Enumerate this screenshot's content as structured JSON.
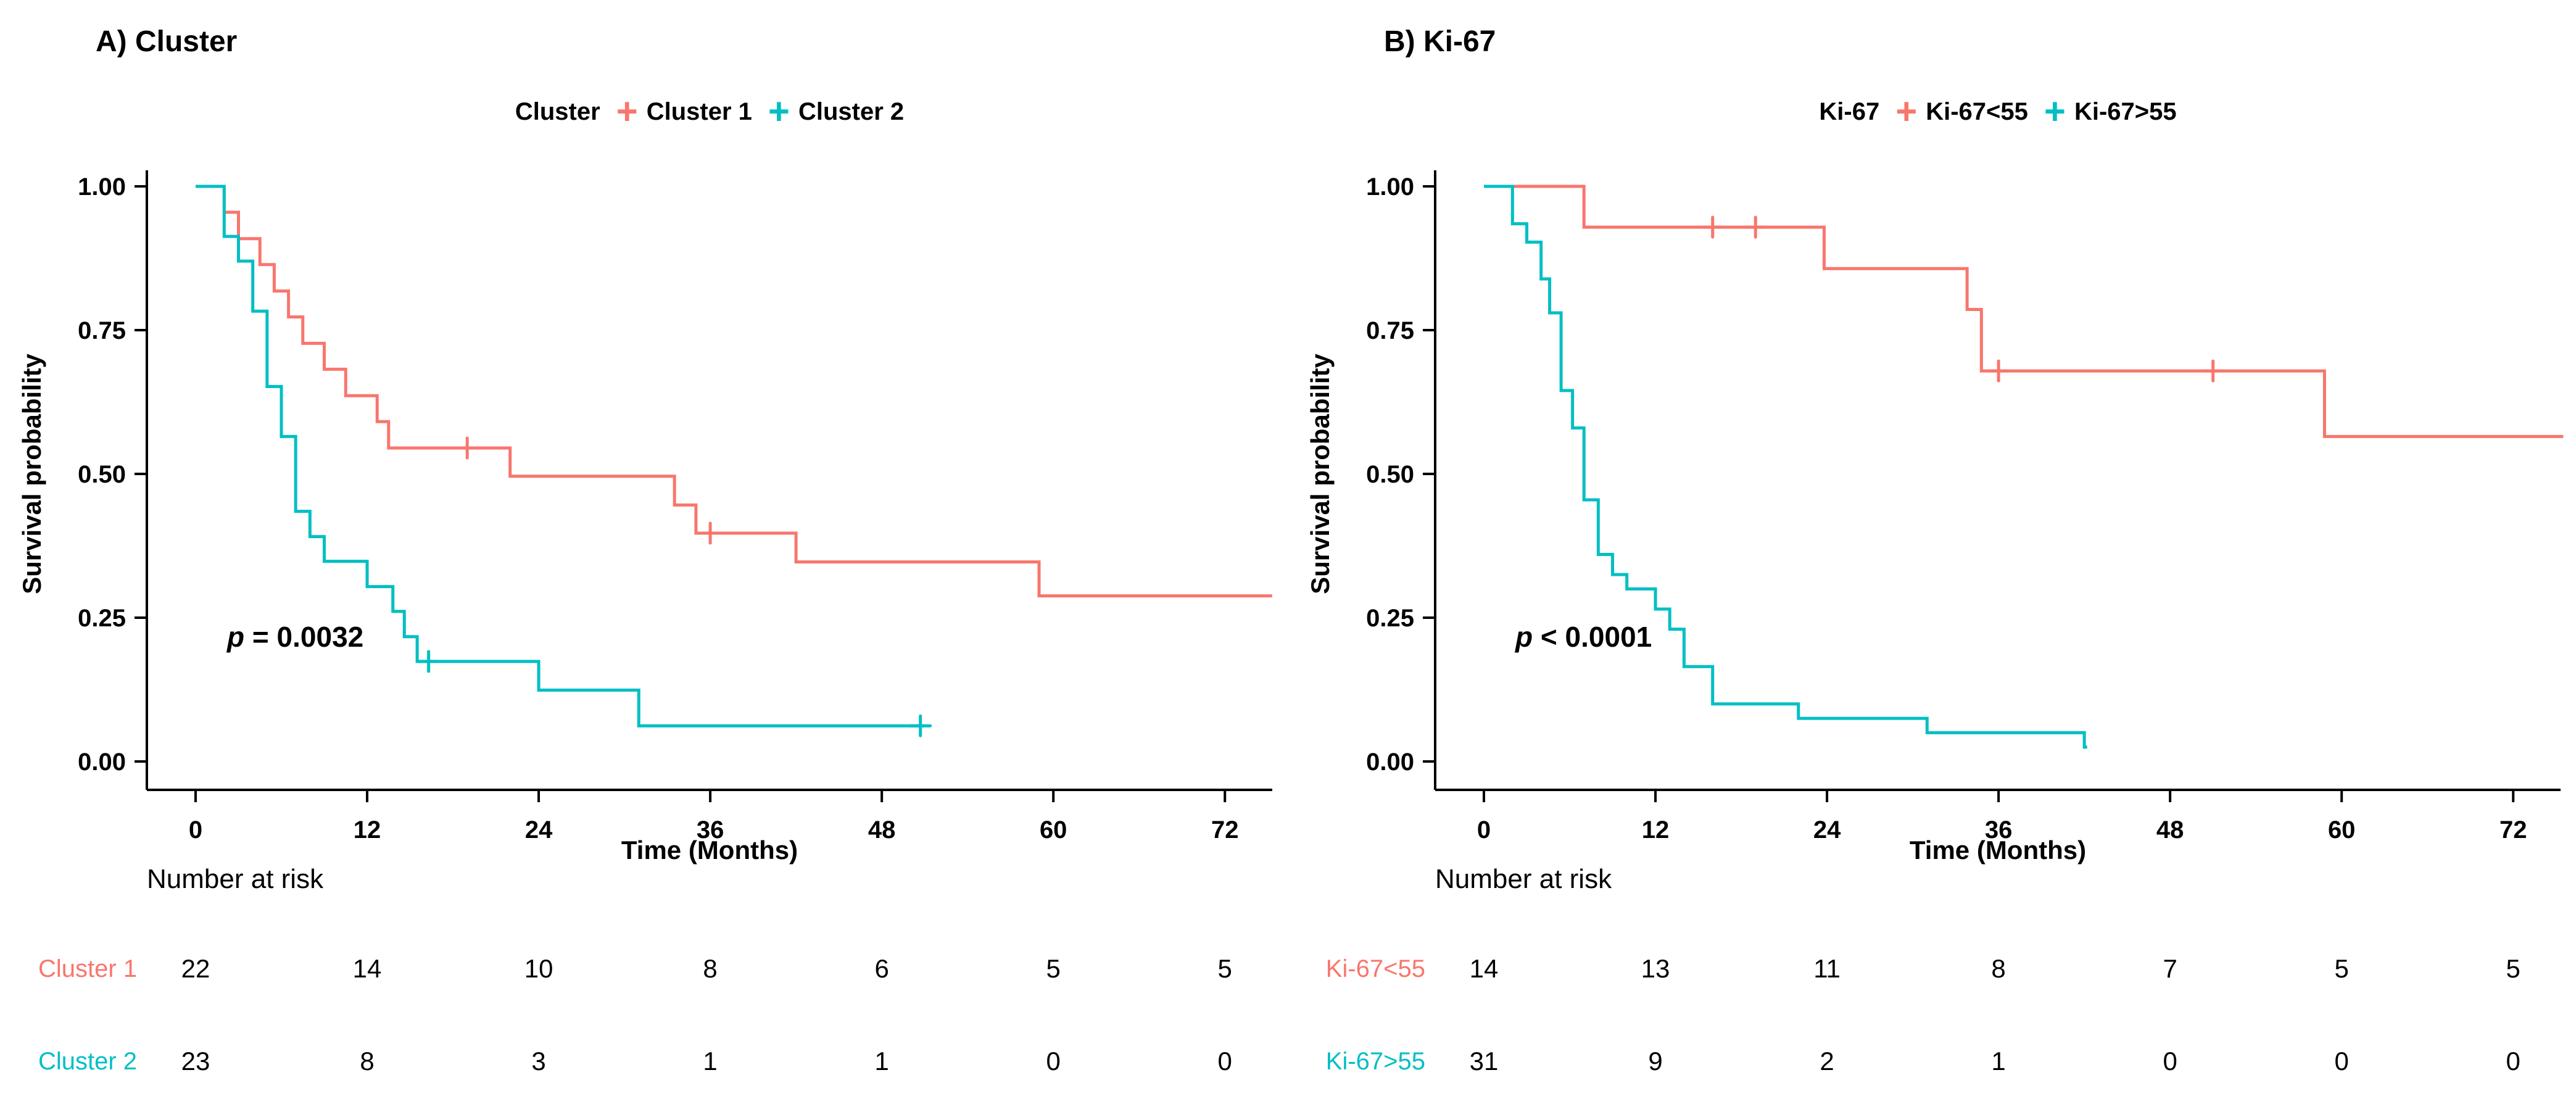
{
  "figure_colors": {
    "group1": "#F8766D",
    "group2": "#00BFC4",
    "axis": "#000000",
    "background": "#ffffff"
  },
  "panels": [
    {
      "title": "A) Cluster",
      "legend": {
        "title": "Cluster",
        "items": [
          {
            "label": "Cluster 1",
            "marker": "+",
            "color": "#F8766D"
          },
          {
            "label": "Cluster 2",
            "marker": "+",
            "color": "#00BFC4"
          }
        ]
      },
      "ylabel": "Survival probability",
      "xlabel": "Time (Months)",
      "p_prefix": "p",
      "p_text": " = 0.0032",
      "risk_table": {
        "heading": "Number at risk",
        "times": [
          0,
          12,
          24,
          36,
          48,
          60,
          72
        ],
        "rows": [
          {
            "label": "Cluster 1",
            "color": "#F8766D",
            "counts": [
              22,
              14,
              10,
              8,
              6,
              5,
              5
            ]
          },
          {
            "label": "Cluster 2",
            "color": "#00BFC4",
            "counts": [
              23,
              8,
              3,
              1,
              1,
              0,
              0
            ]
          }
        ]
      }
    },
    {
      "title": "B) Ki-67",
      "legend": {
        "title": "Ki-67",
        "items": [
          {
            "label": "Ki-67<55",
            "marker": "+",
            "color": "#F8766D"
          },
          {
            "label": "Ki-67>55",
            "marker": "+",
            "color": "#00BFC4"
          }
        ]
      },
      "ylabel": "Survival probability",
      "xlabel": "Time (Months)",
      "p_prefix": "p",
      "p_text": " < 0.0001",
      "risk_table": {
        "heading": "Number at risk",
        "times": [
          0,
          12,
          24,
          36,
          48,
          60,
          72
        ],
        "rows": [
          {
            "label": "Ki-67<55",
            "color": "#F8766D",
            "counts": [
              14,
              13,
              11,
              8,
              7,
              5,
              5
            ]
          },
          {
            "label": "Ki-67>55",
            "color": "#00BFC4",
            "counts": [
              31,
              9,
              2,
              1,
              0,
              0,
              0
            ]
          }
        ]
      }
    }
  ],
  "chart_data": [
    {
      "type": "line",
      "subtype": "kaplan_meier_step",
      "title": "A) Cluster",
      "xlabel": "Time (Months)",
      "ylabel": "Survival probability",
      "annotation": "p = 0.0032",
      "legend_position": "top",
      "grid": false,
      "xlim": [
        0,
        76
      ],
      "ylim": [
        0,
        1
      ],
      "x_ticks": [
        0,
        12,
        24,
        36,
        48,
        60,
        72
      ],
      "y_ticks": [
        {
          "value": 0.0,
          "label": "0.00"
        },
        {
          "value": 0.25,
          "label": "0.25"
        },
        {
          "value": 0.5,
          "label": "0.50"
        },
        {
          "value": 0.75,
          "label": "0.75"
        },
        {
          "value": 1.0,
          "label": "1.00"
        }
      ],
      "series": [
        {
          "name": "Cluster 1",
          "color": "#F8766D",
          "steps": [
            [
              0,
              1.0
            ],
            [
              2,
              0.955
            ],
            [
              3,
              0.909
            ],
            [
              4.5,
              0.864
            ],
            [
              5.5,
              0.818
            ],
            [
              6.5,
              0.773
            ],
            [
              7.5,
              0.727
            ],
            [
              9,
              0.682
            ],
            [
              10.5,
              0.636
            ],
            [
              12.7,
              0.591
            ],
            [
              13.5,
              0.545
            ],
            [
              22,
              0.496
            ],
            [
              33.5,
              0.446
            ],
            [
              35,
              0.397
            ],
            [
              42,
              0.347
            ],
            [
              59,
              0.288
            ]
          ],
          "t_end": 75.3,
          "censors": [
            [
              19,
              0.545
            ],
            [
              36,
              0.397
            ]
          ]
        },
        {
          "name": "Cluster 2",
          "color": "#00BFC4",
          "steps": [
            [
              0,
              1.0
            ],
            [
              2,
              0.913
            ],
            [
              3,
              0.87
            ],
            [
              4,
              0.783
            ],
            [
              5,
              0.652
            ],
            [
              6,
              0.565
            ],
            [
              7,
              0.435
            ],
            [
              8,
              0.391
            ],
            [
              9,
              0.348
            ],
            [
              12,
              0.304
            ],
            [
              13.8,
              0.261
            ],
            [
              14.6,
              0.217
            ],
            [
              15.5,
              0.174
            ],
            [
              24,
              0.124
            ],
            [
              31,
              0.062
            ]
          ],
          "t_end": 51,
          "censors": [
            [
              16.3,
              0.174
            ],
            [
              50.7,
              0.062
            ]
          ]
        }
      ]
    },
    {
      "type": "line",
      "subtype": "kaplan_meier_step",
      "title": "B) Ki-67",
      "xlabel": "Time (Months)",
      "ylabel": "Survival probability",
      "annotation": "p < 0.0001",
      "legend_position": "top",
      "grid": false,
      "xlim": [
        0,
        76
      ],
      "ylim": [
        0,
        1
      ],
      "x_ticks": [
        0,
        12,
        24,
        36,
        48,
        60,
        72
      ],
      "y_ticks": [
        {
          "value": 0.0,
          "label": "0.00"
        },
        {
          "value": 0.25,
          "label": "0.25"
        },
        {
          "value": 0.5,
          "label": "0.50"
        },
        {
          "value": 0.75,
          "label": "0.75"
        },
        {
          "value": 1.0,
          "label": "1.00"
        }
      ],
      "series": [
        {
          "name": "Ki-67<55",
          "color": "#F8766D",
          "steps": [
            [
              0,
              1.0
            ],
            [
              7,
              0.929
            ],
            [
              23.8,
              0.857
            ],
            [
              33.8,
              0.786
            ],
            [
              34.8,
              0.679
            ],
            [
              58.8,
              0.565
            ]
          ],
          "t_end": 75.5,
          "censors": [
            [
              16,
              0.929
            ],
            [
              19,
              0.929
            ],
            [
              36,
              0.679
            ],
            [
              51,
              0.679
            ]
          ]
        },
        {
          "name": "Ki-67>55",
          "color": "#00BFC4",
          "steps": [
            [
              0,
              1.0
            ],
            [
              2,
              0.935
            ],
            [
              3,
              0.903
            ],
            [
              4,
              0.839
            ],
            [
              4.6,
              0.78
            ],
            [
              5.4,
              0.645
            ],
            [
              6.2,
              0.58
            ],
            [
              7,
              0.455
            ],
            [
              8,
              0.36
            ],
            [
              9,
              0.325
            ],
            [
              10,
              0.3
            ],
            [
              12,
              0.265
            ],
            [
              13,
              0.23
            ],
            [
              14,
              0.165
            ],
            [
              16,
              0.1
            ],
            [
              22,
              0.075
            ],
            [
              31,
              0.05
            ],
            [
              42,
              0.025
            ]
          ],
          "t_end": 42.2,
          "censors": []
        }
      ]
    }
  ]
}
